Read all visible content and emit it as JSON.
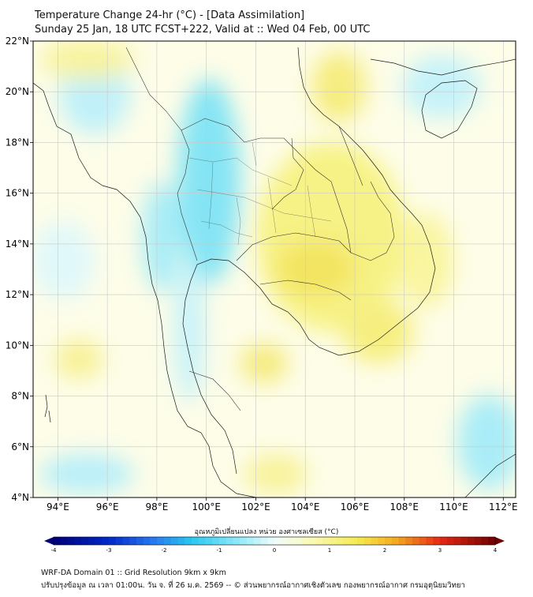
{
  "header": {
    "title": "Temperature Change 24-hr (°C) - [Data Assimilation]",
    "subtitle": "Sunday 25 Jan, 18 UTC FCST+222, Valid at :: Wed 04 Feb, 00 UTC"
  },
  "map": {
    "lat_labels": [
      "22°N",
      "20°N",
      "18°N",
      "16°N",
      "14°N",
      "12°N",
      "10°N",
      "8°N",
      "6°N",
      "4°N"
    ],
    "lon_labels": [
      "94°E",
      "96°E",
      "98°E",
      "100°E",
      "102°E",
      "104°E",
      "106°E",
      "108°E",
      "110°E",
      "112°E"
    ],
    "lat_range": [
      4,
      22
    ],
    "lon_range": [
      93,
      112.5
    ]
  },
  "colorbar": {
    "title": "อุณหภูมิเปลี่ยนแปลง หน่วย องศาเซลเซียส (°C)",
    "ticks": [
      "-4",
      "-3",
      "-2",
      "-1",
      "0",
      "1",
      "2",
      "3",
      "4"
    ],
    "range": [
      -4,
      4
    ]
  },
  "footer": {
    "line1": "WRF-DA Domain 01 :: Grid Resolution 9km x 9km",
    "line2": "ปรับปรุงข้อมูล ณ เวลา 01:00น. วัน จ. ที่ 26 ม.ค. 2569 -- © ส่วนพยากรณ์อากาศเชิงตัวเลข กองพยากรณ์อากาศ กรมอุตุนิยมวิทยา"
  }
}
